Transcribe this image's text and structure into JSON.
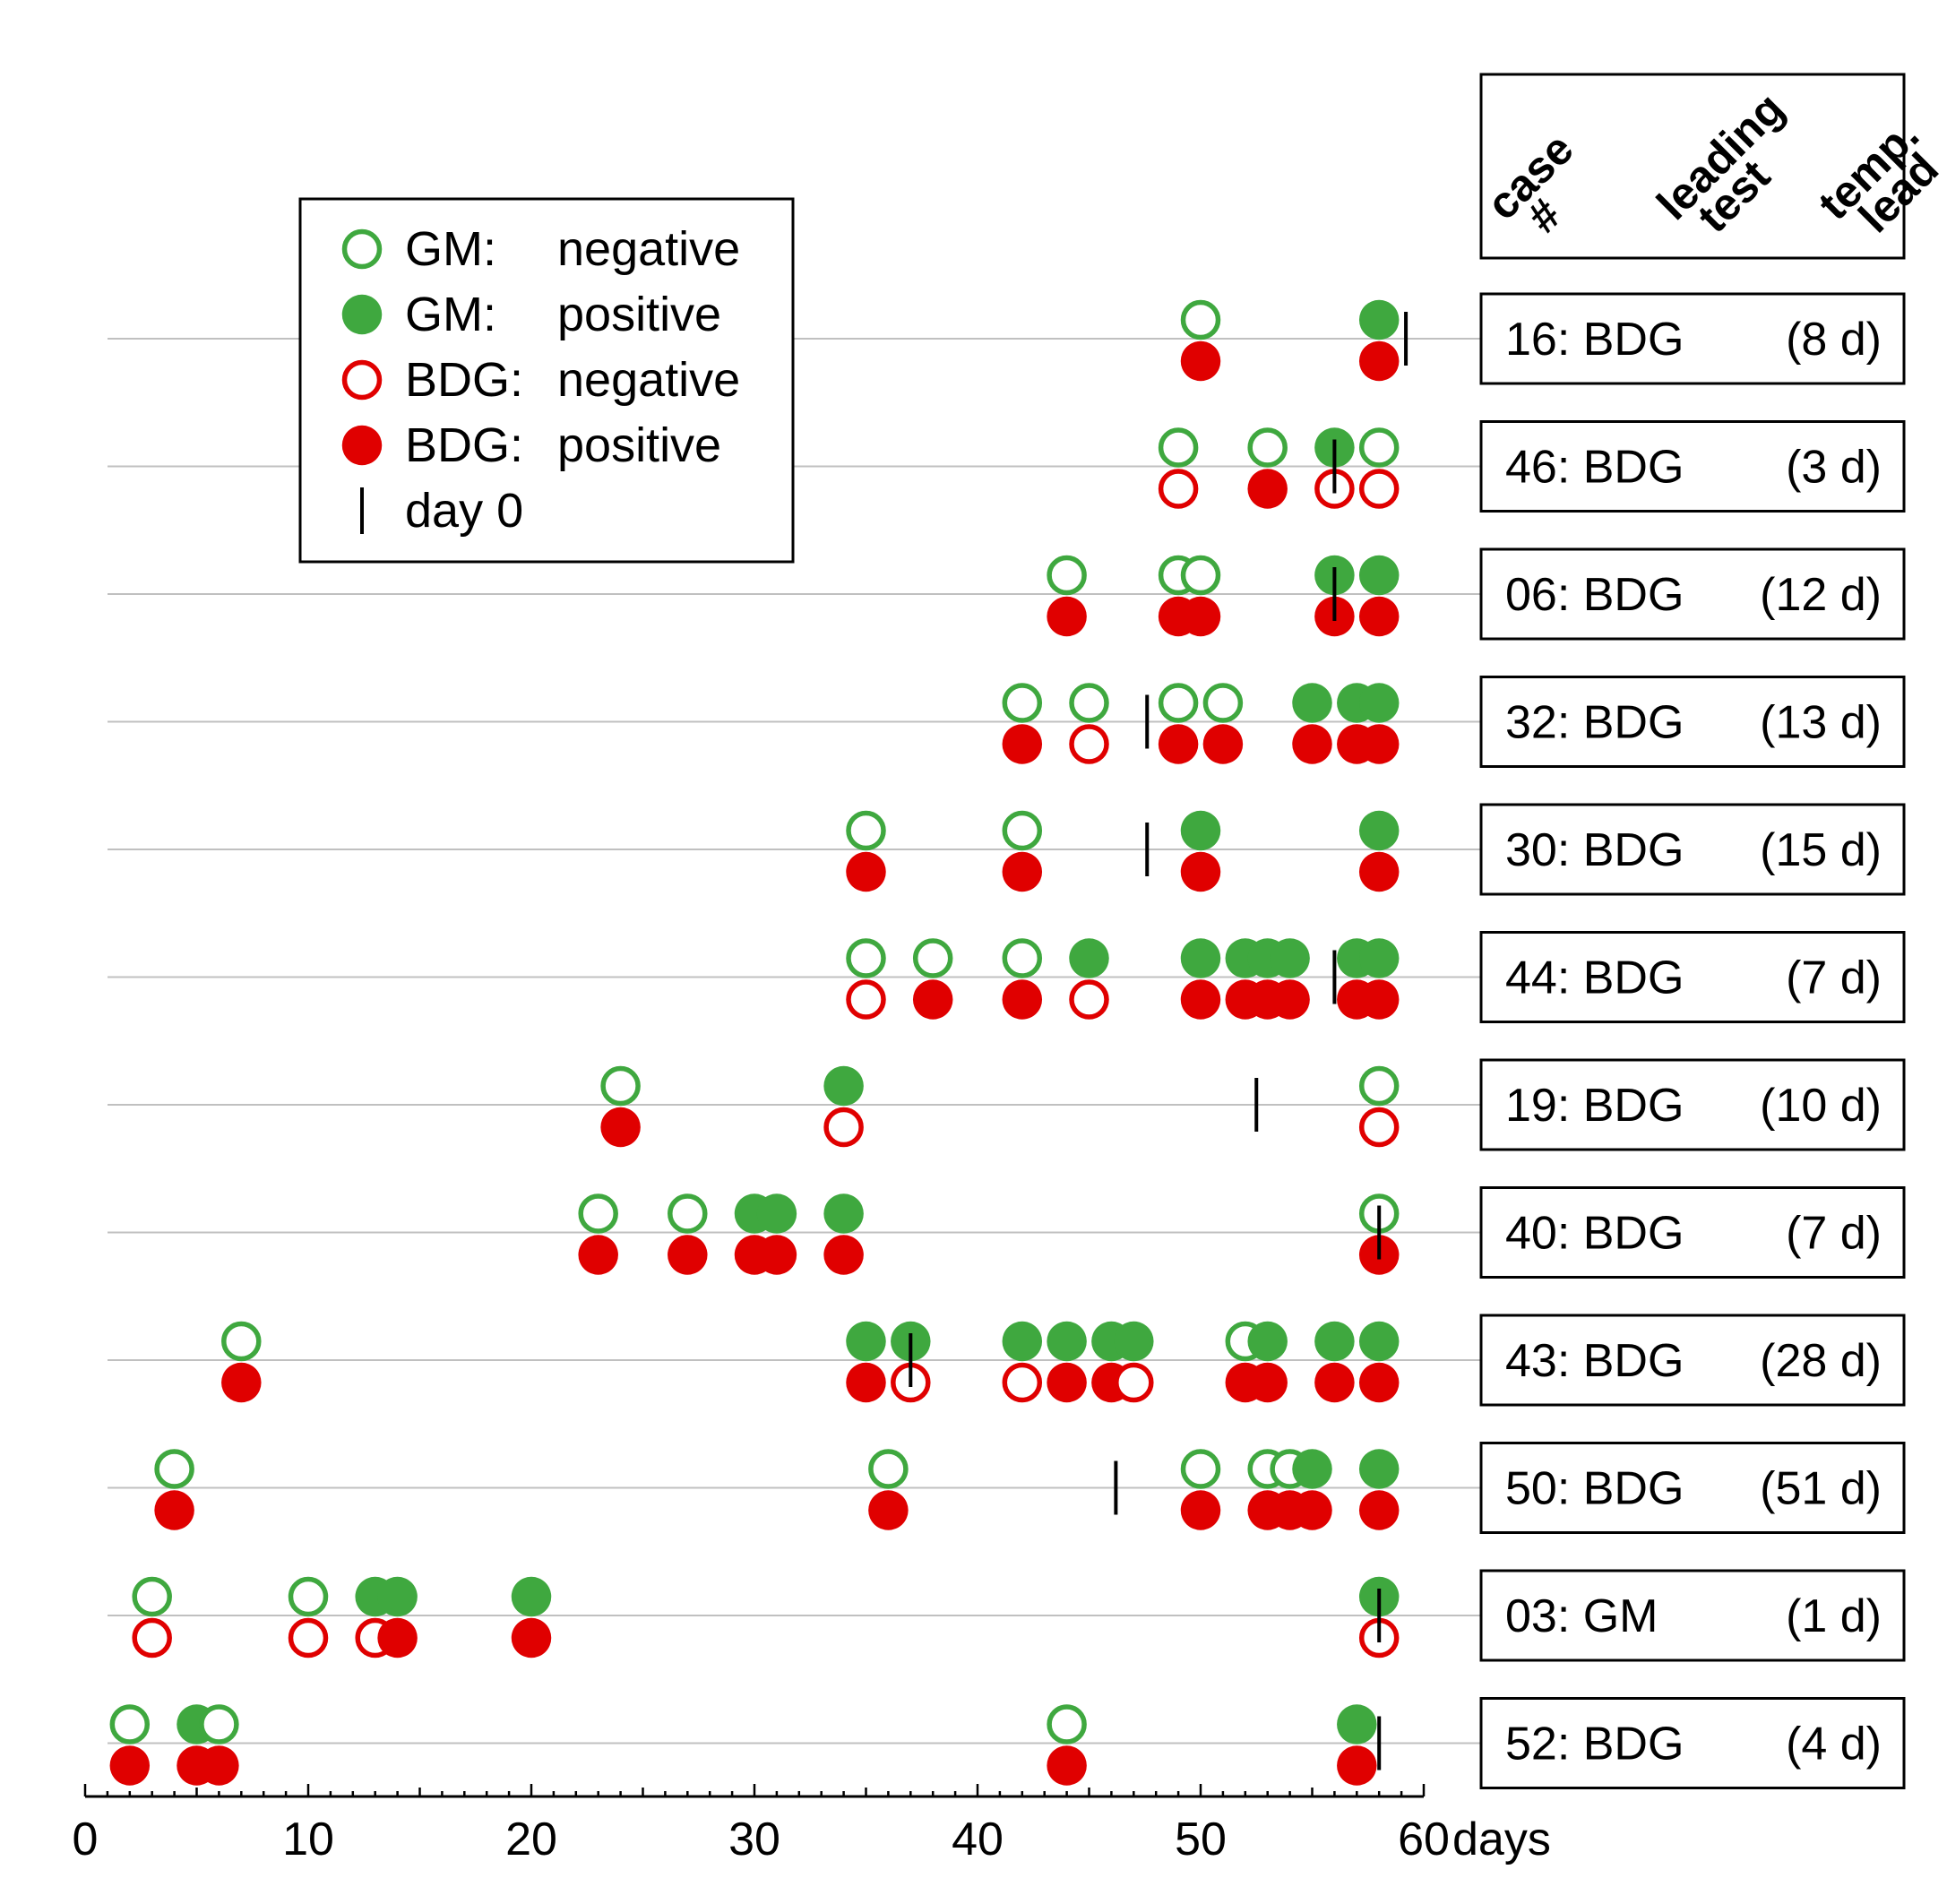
{
  "chart_data": {
    "type": "scatter",
    "title": "",
    "xlabel": "days",
    "x_ticks": [
      "0",
      "10",
      "20",
      "30",
      "40",
      "50",
      "60"
    ],
    "xlim": [
      0,
      60
    ],
    "legend": {
      "placement": "top-left",
      "entries": [
        {
          "prefix": "GM:",
          "status": "negative",
          "kind": "gm-neg"
        },
        {
          "prefix": "GM:",
          "status": "positive",
          "kind": "gm-pos"
        },
        {
          "prefix": "BDG:",
          "status": "negative",
          "kind": "bdg-neg"
        },
        {
          "prefix": "BDG:",
          "status": "positive",
          "kind": "bdg-pos"
        },
        {
          "prefix": "",
          "status": "day 0",
          "kind": "day0"
        }
      ]
    },
    "table_headers": [
      "case #",
      "leading test",
      "temp. lead"
    ],
    "colors": {
      "gm": "#3fa83f",
      "bdg": "#e00000",
      "day0": "#000000",
      "line": "#c0c0c0"
    },
    "cases": [
      {
        "case": "16",
        "test": "BDG",
        "lead": "(8 d)",
        "day0": 59.2,
        "gm": [
          [
            50,
            0
          ],
          [
            58,
            1
          ]
        ],
        "bdg": [
          [
            50,
            1
          ],
          [
            58,
            1
          ]
        ]
      },
      {
        "case": "46",
        "test": "BDG",
        "lead": "(3 d)",
        "day0": 56,
        "gm": [
          [
            49,
            0
          ],
          [
            53,
            0
          ],
          [
            56,
            1
          ],
          [
            58,
            0
          ]
        ],
        "bdg": [
          [
            49,
            0
          ],
          [
            53,
            1
          ],
          [
            56,
            0
          ],
          [
            58,
            0
          ]
        ]
      },
      {
        "case": "06",
        "test": "BDG",
        "lead": "(12 d)",
        "day0": 56,
        "gm": [
          [
            44,
            0
          ],
          [
            49,
            0
          ],
          [
            50,
            0
          ],
          [
            56,
            1
          ],
          [
            58,
            1
          ]
        ],
        "bdg": [
          [
            44,
            1
          ],
          [
            49,
            1
          ],
          [
            50,
            1
          ],
          [
            56,
            1
          ],
          [
            58,
            1
          ]
        ]
      },
      {
        "case": "32",
        "test": "BDG",
        "lead": "(13 d)",
        "day0": 47.6,
        "gm": [
          [
            42,
            0
          ],
          [
            45,
            0
          ],
          [
            49,
            0
          ],
          [
            51,
            0
          ],
          [
            55,
            1
          ],
          [
            57,
            1
          ],
          [
            58,
            1
          ]
        ],
        "bdg": [
          [
            42,
            1
          ],
          [
            45,
            0
          ],
          [
            49,
            1
          ],
          [
            51,
            1
          ],
          [
            55,
            1
          ],
          [
            57,
            1
          ],
          [
            58,
            1
          ]
        ]
      },
      {
        "case": "30",
        "test": "BDG",
        "lead": "(15 d)",
        "day0": 47.6,
        "gm": [
          [
            35,
            0
          ],
          [
            42,
            0
          ],
          [
            50,
            1
          ],
          [
            58,
            1
          ]
        ],
        "bdg": [
          [
            35,
            1
          ],
          [
            42,
            1
          ],
          [
            50,
            1
          ],
          [
            58,
            1
          ]
        ]
      },
      {
        "case": "44",
        "test": "BDG",
        "lead": "(7 d)",
        "day0": 56,
        "gm": [
          [
            35,
            0
          ],
          [
            38,
            0
          ],
          [
            42,
            0
          ],
          [
            45,
            1
          ],
          [
            50,
            1
          ],
          [
            52,
            1
          ],
          [
            53,
            1
          ],
          [
            54,
            1
          ],
          [
            57,
            1
          ],
          [
            58,
            1
          ]
        ],
        "bdg": [
          [
            35,
            0
          ],
          [
            38,
            1
          ],
          [
            42,
            1
          ],
          [
            45,
            0
          ],
          [
            50,
            1
          ],
          [
            52,
            1
          ],
          [
            53,
            1
          ],
          [
            54,
            1
          ],
          [
            57,
            1
          ],
          [
            58,
            1
          ]
        ]
      },
      {
        "case": "19",
        "test": "BDG",
        "lead": "(10 d)",
        "day0": 52.5,
        "gm": [
          [
            24,
            0
          ],
          [
            34,
            1
          ],
          [
            58,
            0
          ]
        ],
        "bdg": [
          [
            24,
            1
          ],
          [
            34,
            0
          ],
          [
            58,
            0
          ]
        ]
      },
      {
        "case": "40",
        "test": "BDG",
        "lead": "(7 d)",
        "day0": 58,
        "gm": [
          [
            23,
            0
          ],
          [
            27,
            0
          ],
          [
            30,
            1
          ],
          [
            31,
            1
          ],
          [
            34,
            1
          ],
          [
            58,
            0
          ]
        ],
        "bdg": [
          [
            23,
            1
          ],
          [
            27,
            1
          ],
          [
            30,
            1
          ],
          [
            31,
            1
          ],
          [
            34,
            1
          ],
          [
            58,
            1
          ]
        ]
      },
      {
        "case": "43",
        "test": "BDG",
        "lead": "(28 d)",
        "day0": 37,
        "gm": [
          [
            7,
            0
          ],
          [
            35,
            1
          ],
          [
            37,
            1
          ],
          [
            42,
            1
          ],
          [
            44,
            1
          ],
          [
            46,
            1
          ],
          [
            47,
            1
          ],
          [
            52,
            0
          ],
          [
            53,
            1
          ],
          [
            56,
            1
          ],
          [
            58,
            1
          ]
        ],
        "bdg": [
          [
            7,
            1
          ],
          [
            35,
            1
          ],
          [
            37,
            0
          ],
          [
            42,
            0
          ],
          [
            44,
            1
          ],
          [
            46,
            1
          ],
          [
            47,
            0
          ],
          [
            52,
            1
          ],
          [
            53,
            1
          ],
          [
            56,
            1
          ],
          [
            58,
            1
          ]
        ]
      },
      {
        "case": "50",
        "test": "BDG",
        "lead": "(51 d)",
        "day0": 46.2,
        "gm": [
          [
            4,
            0
          ],
          [
            36,
            0
          ],
          [
            50,
            0
          ],
          [
            53,
            0
          ],
          [
            54,
            0
          ],
          [
            55,
            1
          ],
          [
            58,
            1
          ]
        ],
        "bdg": [
          [
            4,
            1
          ],
          [
            36,
            1
          ],
          [
            50,
            1
          ],
          [
            53,
            1
          ],
          [
            54,
            1
          ],
          [
            55,
            1
          ],
          [
            58,
            1
          ]
        ]
      },
      {
        "case": "03",
        "test": "GM",
        "lead": "(1 d)",
        "day0": 58,
        "gm": [
          [
            3,
            0
          ],
          [
            10,
            0
          ],
          [
            13,
            1
          ],
          [
            14,
            1
          ],
          [
            20,
            1
          ],
          [
            58,
            1
          ]
        ],
        "bdg": [
          [
            3,
            0
          ],
          [
            10,
            0
          ],
          [
            13,
            0
          ],
          [
            14,
            1
          ],
          [
            20,
            1
          ],
          [
            58,
            0
          ]
        ]
      },
      {
        "case": "52",
        "test": "BDG",
        "lead": "(4 d)",
        "day0": 58,
        "gm": [
          [
            2,
            0
          ],
          [
            5,
            1
          ],
          [
            6,
            0
          ],
          [
            44,
            0
          ],
          [
            57,
            1
          ]
        ],
        "bdg": [
          [
            2,
            1
          ],
          [
            5,
            1
          ],
          [
            6,
            1
          ],
          [
            44,
            1
          ],
          [
            57,
            1
          ]
        ]
      }
    ]
  }
}
